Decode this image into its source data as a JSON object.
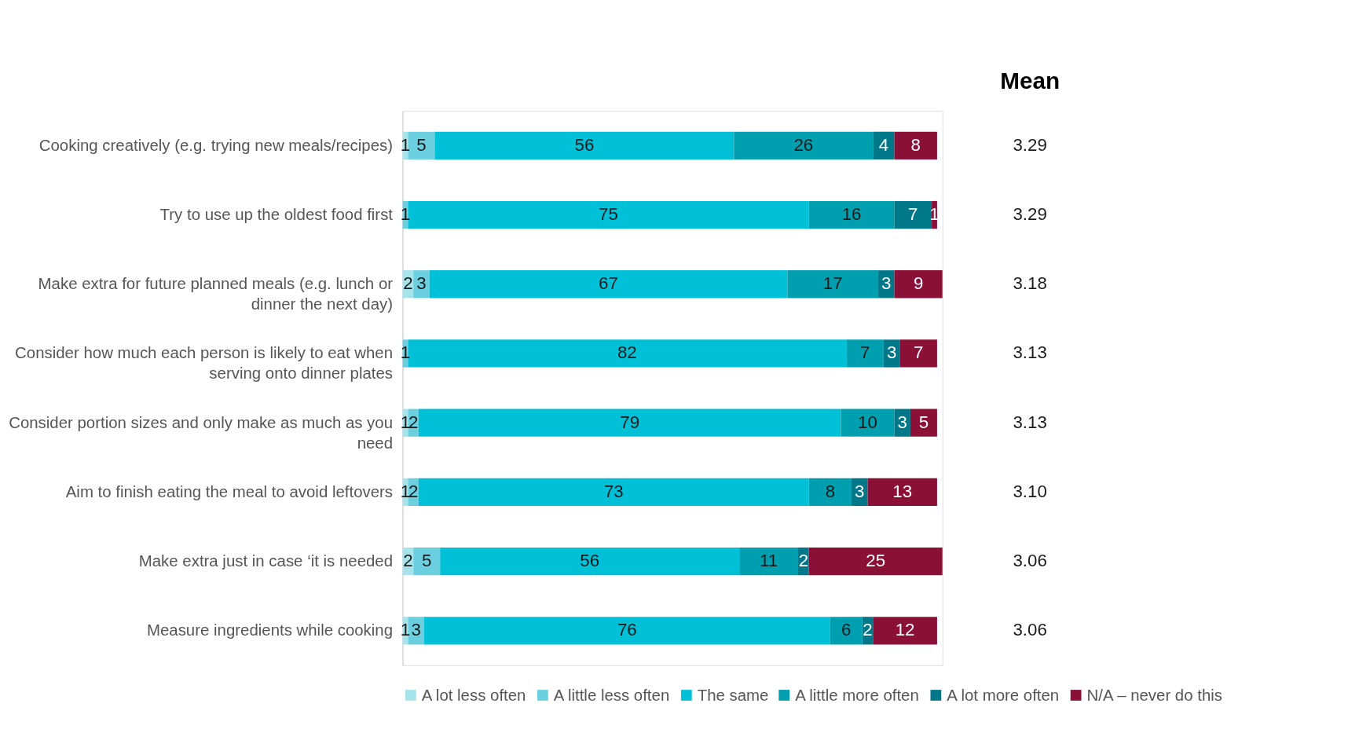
{
  "chart_data": {
    "type": "bar",
    "orientation": "horizontal",
    "stacked": true,
    "data_labels": true,
    "grid": false,
    "legend": "bottom",
    "categories": [
      "Cooking creatively (e.g. trying new meals/recipes)",
      "Try to use up the oldest food first",
      "Make extra for  future planned meals (e.g. lunch or dinner the next day)",
      "Consider how much each person is likely to eat when serving onto dinner plates",
      "Consider portion sizes and only make as much as you need",
      "Aim to finish eating the meal to avoid leftovers",
      "Make extra just in case ‘it is needed",
      "Measure ingredients while cooking"
    ],
    "series": [
      {
        "name": "A lot less often",
        "color": "#a6e3eb",
        "values": [
          1,
          null,
          2,
          null,
          1,
          1,
          2,
          1
        ]
      },
      {
        "name": "A little less often",
        "color": "#6ccfdf",
        "values": [
          5,
          1,
          3,
          1,
          2,
          2,
          5,
          3
        ]
      },
      {
        "name": "The same",
        "color": "#00c0d8",
        "values": [
          56,
          75,
          67,
          82,
          79,
          73,
          56,
          76
        ]
      },
      {
        "name": "A little more often",
        "color": "#009fb0",
        "values": [
          26,
          16,
          17,
          7,
          10,
          8,
          11,
          6
        ]
      },
      {
        "name": "A lot more often",
        "color": "#00788a",
        "values": [
          4,
          7,
          3,
          3,
          3,
          3,
          2,
          2
        ]
      },
      {
        "name": "N/A – never do this",
        "color": "#8a1038",
        "values": [
          8,
          1,
          9,
          7,
          5,
          13,
          25,
          12
        ]
      }
    ],
    "annotations": [
      "Mean",
      "3.29",
      "3.29",
      "3.18",
      "3.13",
      "3.13",
      "3.10",
      "3.06",
      "3.06"
    ]
  }
}
